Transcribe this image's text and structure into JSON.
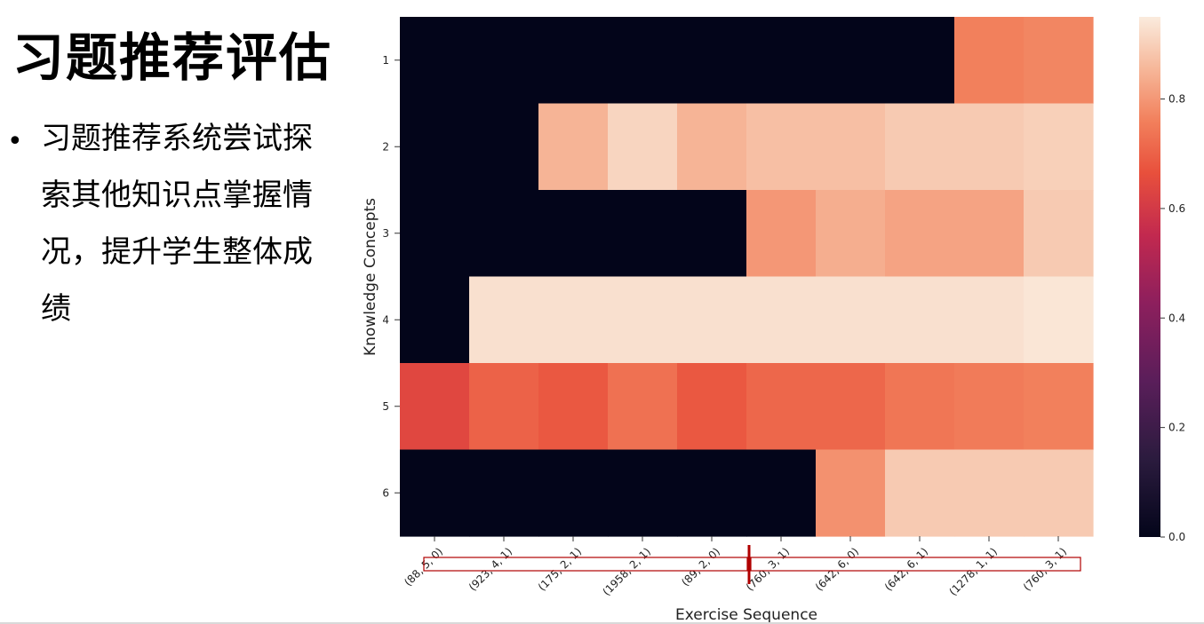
{
  "slide": {
    "title": "习题推荐评估",
    "bullet": "•",
    "bullet_text": "习题推荐系统尝试探索其他知识点掌握情况，提升学生整体成绩"
  },
  "chart_data": {
    "type": "heatmap",
    "xlabel": "Exercise Sequence",
    "ylabel": "Knowledge Concepts",
    "x": [
      "(88, 5, 0)",
      "(923, 4, 1)",
      "(175, 2, 1)",
      "(1958, 2, 1)",
      "(89, 2, 0)",
      "(760, 3, 1)",
      "(642, 6, 0)",
      "(642, 6, 1)",
      "(1278, 1, 1)",
      "(760, 3, 1)"
    ],
    "y": [
      "1",
      "2",
      "3",
      "4",
      "5",
      "6"
    ],
    "values": [
      [
        0,
        0,
        0,
        0,
        0,
        0,
        0,
        0,
        0.76,
        0.77
      ],
      [
        0,
        0,
        0.85,
        0.91,
        0.85,
        0.87,
        0.87,
        0.89,
        0.89,
        0.9
      ],
      [
        0,
        0,
        0,
        0,
        0,
        0.8,
        0.84,
        0.82,
        0.82,
        0.89
      ],
      [
        0,
        0.93,
        0.93,
        0.93,
        0.93,
        0.93,
        0.93,
        0.93,
        0.93,
        0.94
      ],
      [
        0.64,
        0.7,
        0.68,
        0.73,
        0.68,
        0.71,
        0.71,
        0.74,
        0.75,
        0.76
      ],
      [
        0,
        0,
        0,
        0,
        0,
        0,
        0.79,
        0.89,
        0.89,
        0.89
      ]
    ],
    "colorbar": {
      "min": 0.0,
      "max": 0.95,
      "ticks": [
        "0.0",
        "0.2",
        "0.4",
        "0.6",
        "0.8"
      ],
      "tick_values": [
        0,
        0.2,
        0.4,
        0.6,
        0.8
      ]
    },
    "colormap": "rocket",
    "annotation": {
      "type": "highlight-box-with-divider",
      "color": "#b00000"
    }
  }
}
